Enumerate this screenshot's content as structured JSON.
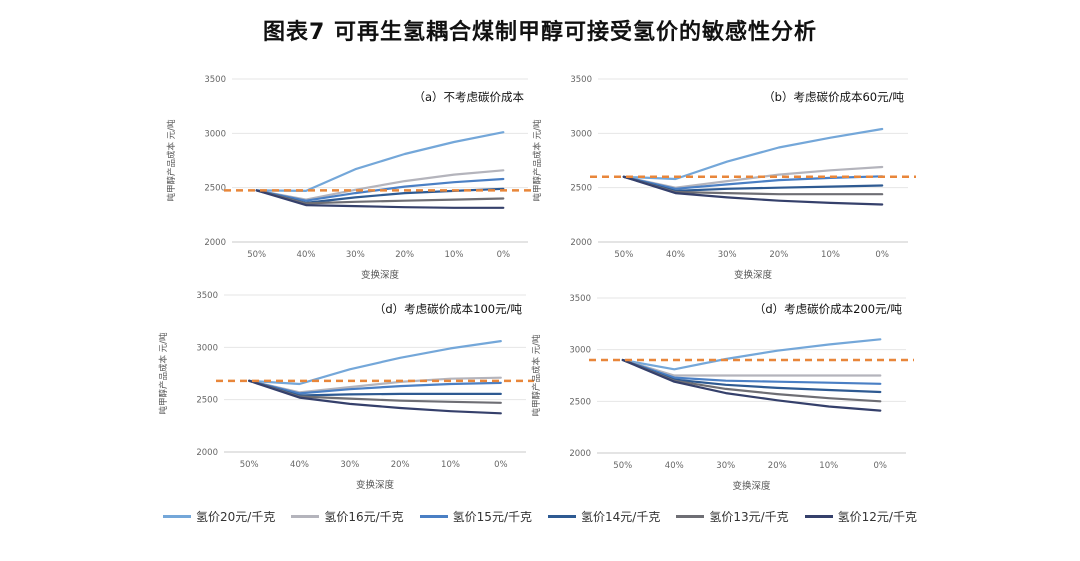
{
  "figure_title": "图表7  可再生氢耦合煤制甲醇可接受氢价的敏感性分析",
  "legend": [
    {
      "label": "氢价20元/千克",
      "color": "#74A7D9"
    },
    {
      "label": "氢价16元/千克",
      "color": "#B4B4BC"
    },
    {
      "label": "氢价15元/千克",
      "color": "#4A7FC4"
    },
    {
      "label": "氢价14元/千克",
      "color": "#2E5A92"
    },
    {
      "label": "氢价13元/千克",
      "color": "#6E6E74"
    },
    {
      "label": "氢价12元/千克",
      "color": "#35406B"
    }
  ],
  "reference_color": "#E8863A",
  "chart_data": [
    {
      "type": "line",
      "title": "（a）不考虑碳价成本",
      "xlabel": "变换深度",
      "ylabel": "吨甲醇产品成本 元/吨",
      "categories": [
        "50%",
        "40%",
        "30%",
        "20%",
        "10%",
        "0%"
      ],
      "ylim": [
        2000,
        3500
      ],
      "yticks": [
        2000,
        2500,
        3000,
        3500
      ],
      "reference": 2475,
      "series": [
        {
          "name": "氢价20元/千克",
          "values": [
            2475,
            2470,
            2670,
            2810,
            2920,
            3010
          ]
        },
        {
          "name": "氢价16元/千克",
          "values": [
            2475,
            2390,
            2480,
            2560,
            2620,
            2660
          ]
        },
        {
          "name": "氢价15元/千克",
          "values": [
            2475,
            2380,
            2450,
            2510,
            2550,
            2580
          ]
        },
        {
          "name": "氢价14元/千克",
          "values": [
            2475,
            2360,
            2410,
            2450,
            2470,
            2490
          ]
        },
        {
          "name": "氢价13元/千克",
          "values": [
            2475,
            2355,
            2370,
            2380,
            2390,
            2400
          ]
        },
        {
          "name": "氢价12元/千克",
          "values": [
            2475,
            2340,
            2330,
            2320,
            2315,
            2315
          ]
        }
      ]
    },
    {
      "type": "line",
      "title": "（b）考虑碳价成本60元/吨",
      "xlabel": "变换深度",
      "ylabel": "吨甲醇产品成本 元/吨",
      "categories": [
        "50%",
        "40%",
        "30%",
        "20%",
        "10%",
        "0%"
      ],
      "ylim": [
        2000,
        3500
      ],
      "yticks": [
        2000,
        2500,
        3000,
        3500
      ],
      "reference": 2600,
      "series": [
        {
          "name": "氢价20元/千克",
          "values": [
            2600,
            2580,
            2740,
            2870,
            2960,
            3040
          ]
        },
        {
          "name": "氢价16元/千克",
          "values": [
            2600,
            2500,
            2560,
            2620,
            2660,
            2690
          ]
        },
        {
          "name": "氢价15元/千克",
          "values": [
            2600,
            2490,
            2530,
            2570,
            2590,
            2605
          ]
        },
        {
          "name": "氢价14元/千克",
          "values": [
            2600,
            2470,
            2490,
            2500,
            2510,
            2520
          ]
        },
        {
          "name": "氢价13元/千克",
          "values": [
            2600,
            2460,
            2450,
            2440,
            2440,
            2440
          ]
        },
        {
          "name": "氢价12元/千克",
          "values": [
            2600,
            2450,
            2410,
            2380,
            2360,
            2345
          ]
        }
      ]
    },
    {
      "type": "line",
      "title": "（d）考虑碳价成本100元/吨",
      "xlabel": "变换深度",
      "ylabel": "吨甲醇产品成本 元/吨",
      "categories": [
        "50%",
        "40%",
        "30%",
        "20%",
        "10%",
        "0%"
      ],
      "ylim": [
        2000,
        3500
      ],
      "yticks": [
        2000,
        2500,
        3000,
        3500
      ],
      "reference": 2680,
      "series": [
        {
          "name": "氢价20元/千克",
          "values": [
            2680,
            2650,
            2790,
            2900,
            2990,
            3060
          ]
        },
        {
          "name": "氢价16元/千克",
          "values": [
            2680,
            2570,
            2620,
            2670,
            2700,
            2710
          ]
        },
        {
          "name": "氢价15元/千克",
          "values": [
            2680,
            2560,
            2600,
            2630,
            2650,
            2660
          ]
        },
        {
          "name": "氢价14元/千克",
          "values": [
            2680,
            2540,
            2550,
            2555,
            2555,
            2555
          ]
        },
        {
          "name": "氢价13元/千克",
          "values": [
            2680,
            2530,
            2510,
            2490,
            2480,
            2470
          ]
        },
        {
          "name": "氢价12元/千克",
          "values": [
            2680,
            2520,
            2460,
            2420,
            2390,
            2370
          ]
        }
      ]
    },
    {
      "type": "line",
      "title": "（d）考虑碳价成本200元/吨",
      "xlabel": "变换深度",
      "ylabel": "吨甲醇产品成本 元/吨",
      "categories": [
        "50%",
        "40%",
        "30%",
        "20%",
        "10%",
        "0%"
      ],
      "ylim": [
        2000,
        3500
      ],
      "yticks": [
        2000,
        2500,
        3000,
        3500
      ],
      "reference": 2900,
      "series": [
        {
          "name": "氢价20元/千克",
          "values": [
            2900,
            2810,
            2910,
            2990,
            3050,
            3100
          ]
        },
        {
          "name": "氢价16元/千克",
          "values": [
            2900,
            2750,
            2750,
            2750,
            2750,
            2750
          ]
        },
        {
          "name": "氢价15元/千克",
          "values": [
            2900,
            2730,
            2700,
            2690,
            2680,
            2670
          ]
        },
        {
          "name": "氢价14元/千克",
          "values": [
            2900,
            2710,
            2660,
            2630,
            2610,
            2590
          ]
        },
        {
          "name": "氢价13元/千克",
          "values": [
            2900,
            2700,
            2620,
            2570,
            2530,
            2500
          ]
        },
        {
          "name": "氢价12元/千克",
          "values": [
            2900,
            2690,
            2580,
            2510,
            2450,
            2410
          ]
        }
      ]
    }
  ]
}
